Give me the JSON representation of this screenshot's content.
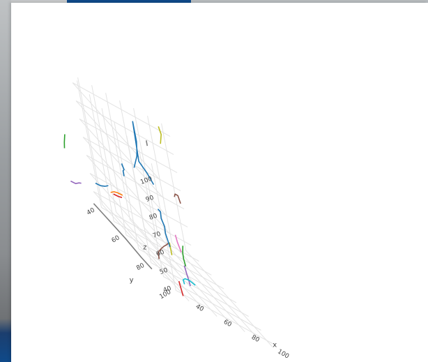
{
  "chart_data": {
    "type": "line3d",
    "title": "",
    "axes": {
      "x": {
        "title": "x",
        "ticks": [
          40,
          60,
          80,
          100
        ]
      },
      "y": {
        "title": "y",
        "ticks": [
          40,
          60,
          80,
          100
        ]
      },
      "z": {
        "title": "z",
        "ticks": [
          40,
          50,
          60,
          70,
          80,
          90,
          100
        ]
      }
    },
    "grid": true,
    "legend": "none",
    "series": [
      {
        "color": "#7f7f7f",
        "points": [
          [
            20,
            52,
            40
          ],
          [
            22,
            56,
            39
          ],
          [
            24,
            62,
            38
          ],
          [
            26,
            70,
            37
          ],
          [
            28,
            80,
            35
          ],
          [
            30,
            86,
            34
          ]
        ]
      },
      {
        "color": "#9467bd",
        "points": [
          [
            16,
            38,
            40
          ],
          [
            18,
            40,
            41
          ],
          [
            20,
            41,
            43
          ],
          [
            21,
            42,
            44
          ]
        ]
      },
      {
        "color": "#2ca02c",
        "points": [
          [
            20,
            33,
            56
          ],
          [
            20,
            34,
            60
          ],
          [
            20,
            35,
            63
          ],
          [
            20,
            36,
            66
          ]
        ]
      },
      {
        "color": "#1f77b4",
        "points": [
          [
            34,
            40,
            48
          ],
          [
            36,
            42,
            49
          ],
          [
            38,
            44,
            51
          ],
          [
            40,
            45,
            53
          ]
        ]
      },
      {
        "color": "#ff7f0e",
        "points": [
          [
            40,
            46,
            50
          ],
          [
            42,
            47,
            52
          ],
          [
            44,
            48,
            53
          ],
          [
            46,
            50,
            54
          ]
        ]
      },
      {
        "color": "#d62728",
        "points": [
          [
            42,
            46,
            50
          ],
          [
            44,
            48,
            51
          ],
          [
            46,
            49,
            52
          ]
        ]
      },
      {
        "color": "#1f77b4",
        "points": [
          [
            58,
            40,
            62
          ],
          [
            58,
            40,
            65
          ],
          [
            59,
            40,
            66
          ],
          [
            58,
            41,
            67
          ],
          [
            58,
            40,
            69
          ]
        ]
      },
      {
        "color": "#8c564b",
        "points": [
          [
            42,
            80,
            40
          ],
          [
            44,
            78,
            43
          ],
          [
            48,
            76,
            45
          ],
          [
            54,
            72,
            46
          ],
          [
            58,
            70,
            47
          ],
          [
            62,
            66,
            46
          ],
          [
            64,
            64,
            46
          ]
        ]
      },
      {
        "color": "#bcbd22",
        "points": [
          [
            56,
            76,
            45
          ],
          [
            56,
            76,
            48
          ],
          [
            56,
            76,
            52
          ]
        ]
      },
      {
        "color": "#1f77b4",
        "points": [
          [
            62,
            68,
            46
          ],
          [
            62,
            66,
            52
          ],
          [
            64,
            64,
            55
          ],
          [
            64,
            62,
            58
          ],
          [
            66,
            60,
            61
          ],
          [
            66,
            58,
            61
          ]
        ]
      },
      {
        "color": "#2ca02c",
        "points": [
          [
            56,
            88,
            48
          ],
          [
            57,
            86,
            51
          ],
          [
            58,
            85,
            54
          ],
          [
            60,
            84,
            58
          ]
        ]
      },
      {
        "color": "#e377c2",
        "points": [
          [
            64,
            76,
            50
          ],
          [
            64,
            74,
            54
          ],
          [
            65,
            72,
            57
          ]
        ]
      },
      {
        "color": "#9467bd",
        "points": [
          [
            52,
            94,
            40
          ],
          [
            53,
            92,
            43
          ],
          [
            54,
            90,
            45
          ],
          [
            55,
            88,
            48
          ]
        ]
      },
      {
        "color": "#17becf",
        "points": [
          [
            46,
            96,
            40
          ],
          [
            48,
            93,
            41
          ],
          [
            52,
            90,
            41
          ],
          [
            56,
            89,
            41
          ],
          [
            60,
            89,
            40
          ]
        ]
      },
      {
        "color": "#d62728",
        "points": [
          [
            40,
            100,
            34
          ],
          [
            41,
            98,
            37
          ],
          [
            42,
            96,
            40
          ]
        ]
      },
      {
        "color": "#1f77b4",
        "points": [
          [
            72,
            34,
            68
          ],
          [
            74,
            34,
            72
          ],
          [
            76,
            34,
            76
          ],
          [
            77,
            34,
            80
          ],
          [
            78,
            34,
            85
          ],
          [
            78,
            34,
            92
          ],
          [
            78,
            34,
            96
          ],
          [
            76,
            35,
            74
          ],
          [
            80,
            36,
            70
          ],
          [
            82,
            38,
            66
          ]
        ]
      },
      {
        "color": "#7f7f7f",
        "points": [
          [
            86,
            34,
            86
          ],
          [
            86,
            34,
            89
          ]
        ]
      },
      {
        "color": "#8c564b",
        "points": [
          [
            92,
            44,
            68
          ],
          [
            93,
            44,
            70
          ],
          [
            95,
            44,
            70
          ],
          [
            96,
            44,
            66
          ]
        ]
      },
      {
        "color": "#bcbd22",
        "points": [
          [
            100,
            30,
            90
          ],
          [
            102,
            30,
            96
          ],
          [
            101,
            30,
            100
          ]
        ]
      }
    ]
  }
}
